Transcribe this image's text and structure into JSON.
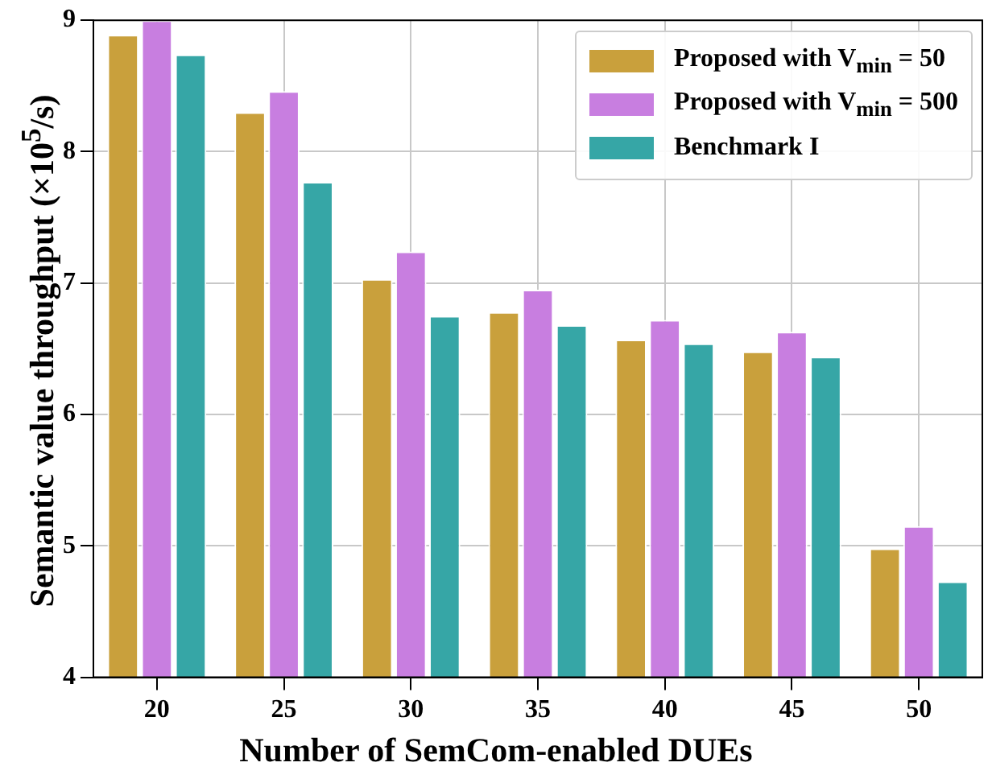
{
  "chart_data": {
    "type": "bar",
    "xlabel": "Number of SemCom-enabled DUEs",
    "ylabel": "Semantic value throughput (×10$^{5}$/s)",
    "categories": [
      "20",
      "25",
      "30",
      "35",
      "40",
      "45",
      "50"
    ],
    "series": [
      {
        "name": "Proposed with V$_{min}$ = 50",
        "color": "#c9a03c",
        "values": [
          8.89,
          8.3,
          7.03,
          6.78,
          6.57,
          6.48,
          4.98
        ]
      },
      {
        "name": "Proposed with V$_{min}$ = 500",
        "color": "#c87ee0",
        "values": [
          9.0,
          8.46,
          7.24,
          6.95,
          6.72,
          6.63,
          5.15
        ]
      },
      {
        "name": "Benchmark I",
        "color": "#36a6a6",
        "values": [
          8.74,
          7.77,
          6.75,
          6.68,
          6.54,
          6.44,
          4.73
        ]
      }
    ],
    "ylim": [
      4,
      9
    ],
    "yticks": [
      4,
      5,
      6,
      7,
      8,
      9
    ],
    "grid": true,
    "legend": "top right"
  }
}
